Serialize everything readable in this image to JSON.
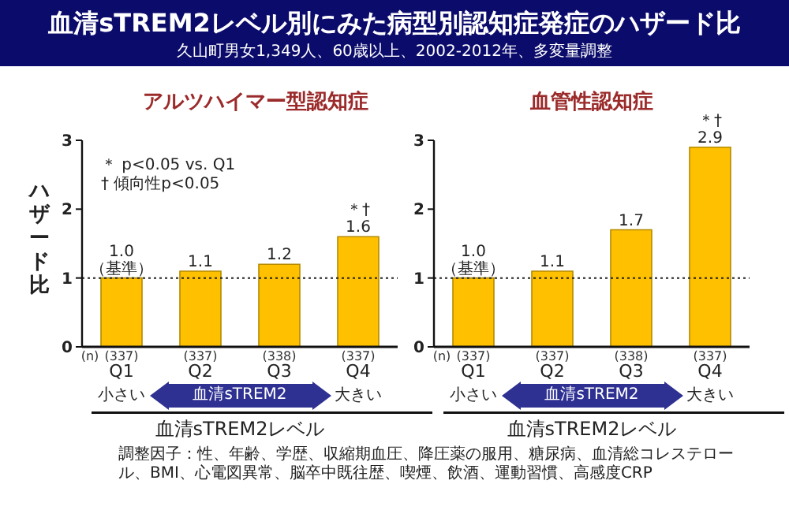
{
  "chart_data": [
    {
      "type": "bar",
      "title": "アルツハイマー型認知症",
      "xlabel": "血清sTREM2レベル",
      "ylabel": "ハザード比",
      "categories": [
        "Q1",
        "Q2",
        "Q3",
        "Q4"
      ],
      "values": [
        1.0,
        1.1,
        1.2,
        1.6
      ],
      "color": "#ffc000",
      "value_labels": [
        "1.0\n（基準）",
        "1.1",
        "1.2",
        "＊†\n1.6"
      ],
      "ylim": [
        0,
        3
      ],
      "yticks": [
        0,
        1,
        2,
        3
      ],
      "ref_lines": [
        {
          "axis": "y",
          "value": 1,
          "color": "#222222",
          "line_style": "dotted"
        }
      ],
      "annotations": [
        "(n)",
        "(337)",
        "(337)",
        "(338)",
        "(337)",
        "小さい",
        "血清sTREM2",
        "大きい",
        "＊ p<0.05 vs. Q1",
        "† 傾向性p<0.05",
        "血清sTREM2レベル別にみた病型別認知症発症のハザード比",
        "久山町男女1,349人、60歳以上、2002-2012年、多変量調整",
        "調整因子：性、年齢、学歴、収縮期血圧、降圧薬の服用、糖尿病、血清総コレステロール、BMI、心電図異常、脳卒中既往歴、喫煙、飲酒、運動習慣、高感度CRP"
      ]
    },
    {
      "type": "bar",
      "title": "血管性認知症",
      "xlabel": "血清sTREM2レベル",
      "categories": [
        "Q1",
        "Q2",
        "Q3",
        "Q4"
      ],
      "values": [
        1.0,
        1.1,
        1.7,
        2.9
      ],
      "color": "#ffc000",
      "value_labels": [
        "1.0\n（基準）",
        "1.1",
        "1.7",
        "＊†\n2.9"
      ],
      "ylim": [
        0,
        3
      ],
      "yticks": [
        0,
        1,
        2,
        3
      ],
      "ref_lines": [
        {
          "axis": "y",
          "value": 1,
          "color": "#222222",
          "line_style": "dotted"
        }
      ],
      "annotations": [
        "(n)",
        "(337)",
        "(337)",
        "(338)",
        "(337)",
        "小さい",
        "血清sTREM2",
        "大きい"
      ]
    }
  ]
}
